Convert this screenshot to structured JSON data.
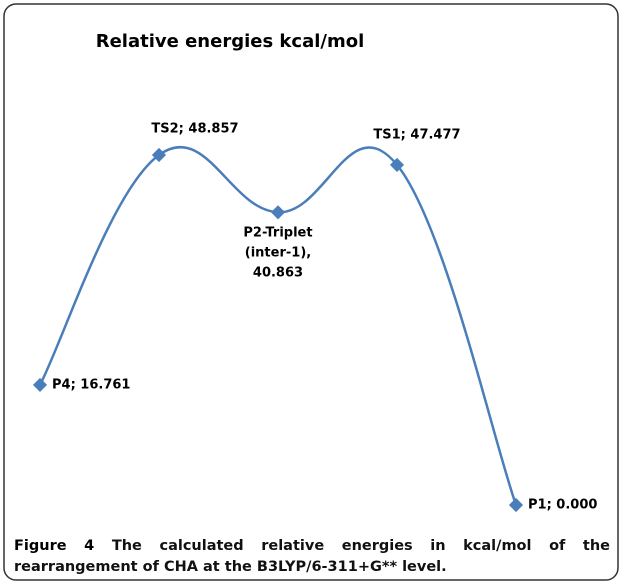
{
  "chart_data": {
    "type": "line",
    "title": "Relative energies kcal/mol",
    "categories": [
      "P4",
      "TS2",
      "P2-Triplet (inter-1)",
      "TS1",
      "P1"
    ],
    "series": [
      {
        "name": "Relative energies",
        "color": "#4a7ebb",
        "values": [
          16.761,
          48.857,
          40.863,
          47.477,
          0.0
        ],
        "value_labels": [
          "P4; 16.761",
          "TS2; 48.857",
          "P2-Triplet (inter-1), 40.863",
          "TS1; 47.477",
          "P1; 0.000"
        ]
      }
    ],
    "smooth": true
  },
  "caption": {
    "label": "Figure 4",
    "text": "The calculated relative energies in kcal/mol of the rearrangement of CHA at the B3LYP/6-311+G** level."
  }
}
